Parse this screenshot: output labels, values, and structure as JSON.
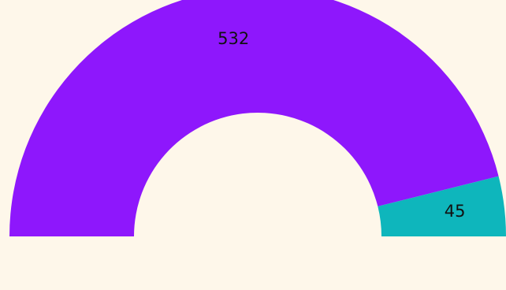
{
  "theme": {
    "background": "#FEF7EA"
  },
  "chart_data": {
    "type": "pie",
    "variant": "semicircle-donut",
    "slices": [
      {
        "label": "532",
        "value": 532,
        "color": "#8E17FC"
      },
      {
        "label": "45",
        "value": 45,
        "color": "#0EB6BC"
      }
    ],
    "total": 577,
    "start_angle_deg": 180,
    "end_angle_deg": 0,
    "legend": "none",
    "grid": false
  }
}
